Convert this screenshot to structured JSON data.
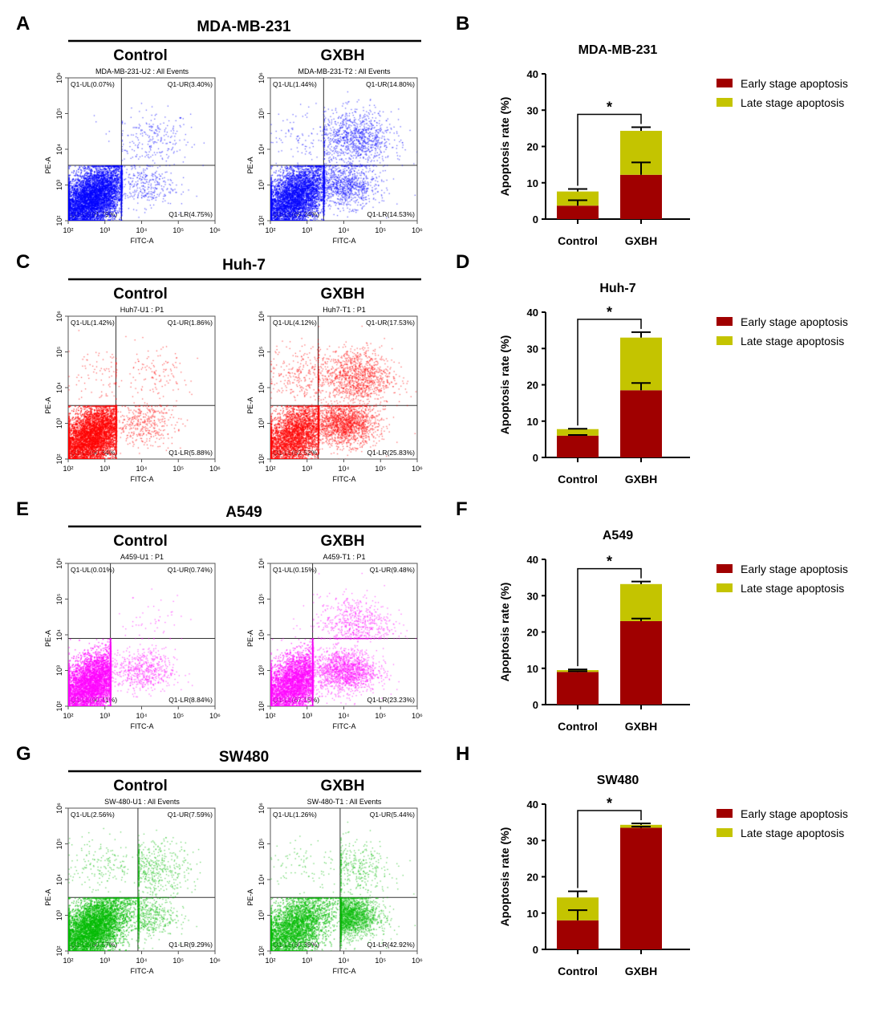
{
  "colors": {
    "early": "#a00000",
    "late": "#c4c400",
    "MDA-MB-231": "#0000ff",
    "Huh-7": "#ff0000",
    "A549": "#ff00ff",
    "SW480": "#00bb00"
  },
  "axis_labels": {
    "flow_x": "FITC-A",
    "flow_y": "PE-A",
    "bar_y": "Apoptosis rate (%)"
  },
  "legend": {
    "early": "Early stage apoptosis",
    "late": "Late stage apoptosis"
  },
  "chart_data": [
    {
      "panel": "A",
      "type": "scatter",
      "title": "MDA-MB-231",
      "plots": [
        {
          "group": "Control",
          "sample_title": "MDA-MB-231-U2 : All Events",
          "gate_log": [
            3.45,
            3.55
          ],
          "UL": "Q1-UL(0.07%)",
          "UR": "Q1-UR(3.40%)",
          "LL": "Q1-LL(91.79%)",
          "LR": "Q1-LR(4.75%)",
          "pct": [
            0.07,
            3.4,
            91.79,
            4.75
          ]
        },
        {
          "group": "GXBH",
          "sample_title": "MDA-MB-231-T2 : All Events",
          "gate_log": [
            3.45,
            3.55
          ],
          "UL": "Q1-UL(1.44%)",
          "UR": "Q1-UR(14.80%)",
          "LL": "Q1-LL(69.24%)",
          "LR": "Q1-LR(14.53%)",
          "pct": [
            1.44,
            14.8,
            69.24,
            14.53
          ]
        }
      ]
    },
    {
      "panel": "B",
      "type": "bar",
      "title": "MDA-MB-231",
      "categories": [
        "Control",
        "GXBH"
      ],
      "ylim": [
        0,
        40
      ],
      "yticks": [
        "0",
        "10",
        "20",
        "30",
        "40"
      ],
      "series": [
        {
          "name": "Early stage apoptosis",
          "values": [
            3.7,
            12.2
          ],
          "err": [
            1.5,
            3.4
          ]
        },
        {
          "name": "Late stage apoptosis",
          "values": [
            3.9,
            12.1
          ],
          "err": [
            0.7,
            1.0
          ]
        }
      ],
      "annotation": "*"
    },
    {
      "panel": "C",
      "type": "scatter",
      "title": "Huh-7",
      "plots": [
        {
          "group": "Control",
          "sample_title": "Huh7-U1 : P1",
          "gate_log": [
            3.3,
            3.5
          ],
          "UL": "Q1-UL(1.42%)",
          "UR": "Q1-UR(1.86%)",
          "LL": "Q1-LL(90.84%)",
          "LR": "Q1-LR(5.88%)",
          "pct": [
            1.42,
            1.86,
            90.84,
            5.88
          ]
        },
        {
          "group": "GXBH",
          "sample_title": "Huh7-T1 : P1",
          "gate_log": [
            3.3,
            3.5
          ],
          "UL": "Q1-UL(4.12%)",
          "UR": "Q1-UR(17.53%)",
          "LL": "Q1-LL(52.52%)",
          "LR": "Q1-LR(25.83%)",
          "pct": [
            4.12,
            17.53,
            52.52,
            25.83
          ]
        }
      ]
    },
    {
      "panel": "D",
      "type": "bar",
      "title": "Huh-7",
      "categories": [
        "Control",
        "GXBH"
      ],
      "ylim": [
        0,
        40
      ],
      "yticks": [
        "0",
        "10",
        "20",
        "30",
        "40"
      ],
      "series": [
        {
          "name": "Early stage apoptosis",
          "values": [
            6.0,
            18.5
          ],
          "err": [
            0.2,
            2.0
          ]
        },
        {
          "name": "Late stage apoptosis",
          "values": [
            1.8,
            14.5
          ],
          "err": [
            0.1,
            1.5
          ]
        }
      ],
      "annotation": "*"
    },
    {
      "panel": "E",
      "type": "scatter",
      "title": "A549",
      "plots": [
        {
          "group": "Control",
          "sample_title": "A459-U1 : P1",
          "gate_log": [
            3.15,
            3.9
          ],
          "UL": "Q1-UL(0.01%)",
          "UR": "Q1-UR(0.74%)",
          "LL": "Q1-LL(90.41%)",
          "LR": "Q1-LR(8.84%)",
          "pct": [
            0.01,
            0.74,
            90.41,
            8.84
          ]
        },
        {
          "group": "GXBH",
          "sample_title": "A459-T1 : P1",
          "gate_log": [
            3.15,
            3.9
          ],
          "UL": "Q1-UL(0.15%)",
          "UR": "Q1-UR(9.48%)",
          "LL": "Q1-LL(67.15%)",
          "LR": "Q1-LR(23.23%)",
          "pct": [
            0.15,
            9.48,
            67.15,
            23.23
          ]
        }
      ]
    },
    {
      "panel": "F",
      "type": "bar",
      "title": "A549",
      "categories": [
        "Control",
        "GXBH"
      ],
      "ylim": [
        0,
        40
      ],
      "yticks": [
        "0",
        "10",
        "20",
        "30",
        "40"
      ],
      "series": [
        {
          "name": "Early stage apoptosis",
          "values": [
            9.0,
            23.0
          ],
          "err": [
            0.2,
            0.7
          ]
        },
        {
          "name": "Late stage apoptosis",
          "values": [
            0.5,
            10.2
          ],
          "err": [
            0.2,
            0.7
          ]
        }
      ],
      "annotation": "*"
    },
    {
      "panel": "G",
      "type": "scatter",
      "title": "SW480",
      "plots": [
        {
          "group": "Control",
          "sample_title": "SW-480-U1 : All Events",
          "gate_log": [
            3.9,
            3.5
          ],
          "UL": "Q1-UL(2.56%)",
          "UR": "Q1-UR(7.59%)",
          "LL": "Q1-LL(80.57%)",
          "LR": "Q1-LR(9.29%)",
          "pct": [
            2.56,
            7.59,
            80.57,
            9.29
          ]
        },
        {
          "group": "GXBH",
          "sample_title": "SW-480-T1 : All Events",
          "gate_log": [
            3.9,
            3.5
          ],
          "UL": "Q1-UL(1.26%)",
          "UR": "Q1-UR(5.44%)",
          "LL": "Q1-LL(50.39%)",
          "LR": "Q1-LR(42.92%)",
          "pct": [
            1.26,
            5.44,
            50.39,
            42.92
          ]
        }
      ]
    },
    {
      "panel": "H",
      "type": "bar",
      "title": "SW480",
      "categories": [
        "Control",
        "GXBH"
      ],
      "ylim": [
        0,
        40
      ],
      "yticks": [
        "0",
        "10",
        "20",
        "30",
        "40"
      ],
      "series": [
        {
          "name": "Early stage apoptosis",
          "values": [
            8.0,
            33.5
          ],
          "err": [
            2.8,
            0.3
          ]
        },
        {
          "name": "Late stage apoptosis",
          "values": [
            6.3,
            0.8
          ],
          "err": [
            1.7,
            0.4
          ]
        }
      ],
      "annotation": "*"
    }
  ]
}
